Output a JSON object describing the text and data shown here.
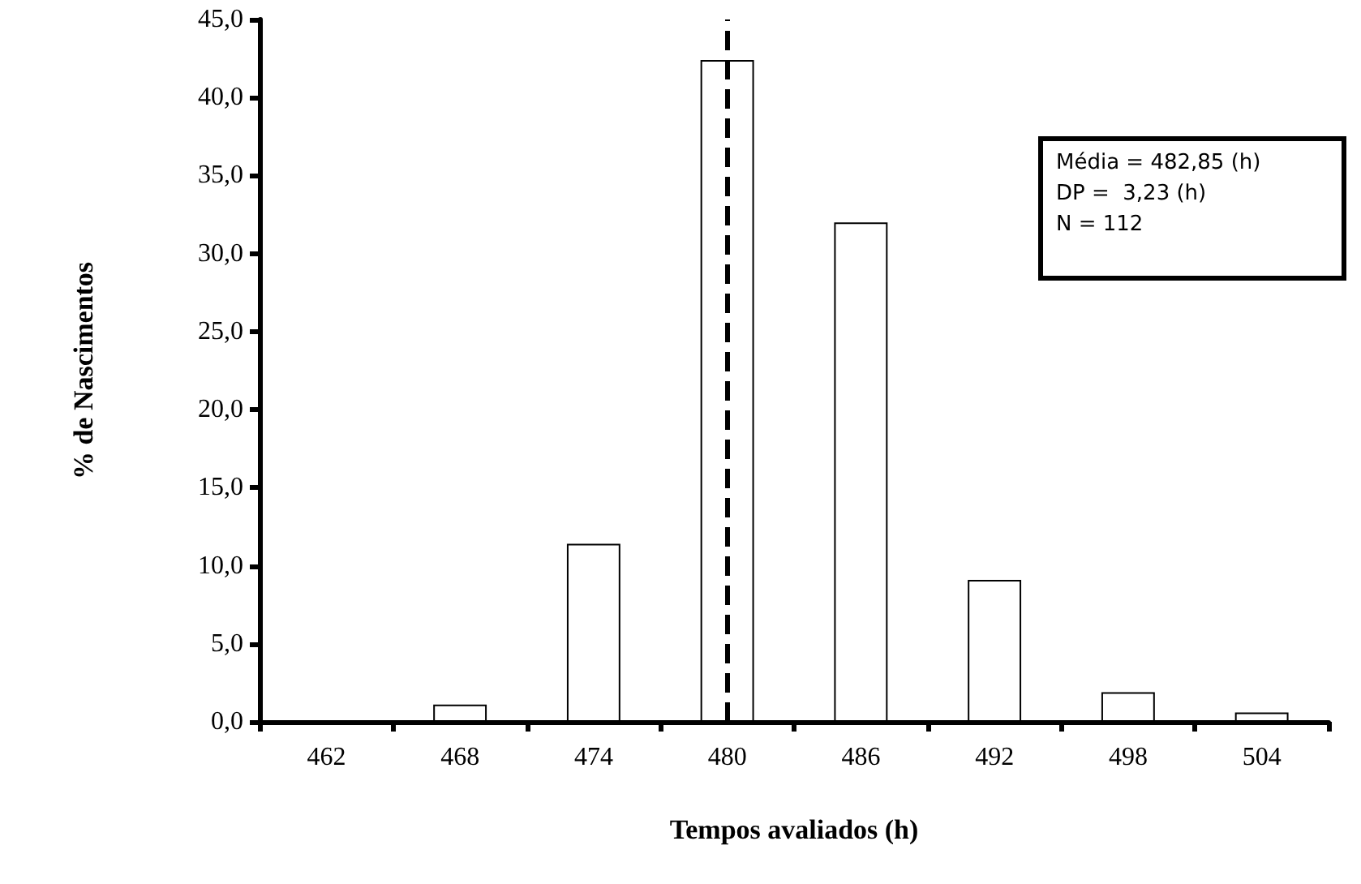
{
  "chart_data": {
    "type": "bar",
    "xlabel": "Tempos avaliados (h)",
    "ylabel": "% de Nascimentos",
    "categories": [
      "462",
      "468",
      "474",
      "480",
      "486",
      "492",
      "498",
      "504"
    ],
    "values": [
      0,
      1.1,
      11.4,
      42.4,
      32.0,
      9.1,
      1.9,
      0.6
    ],
    "color": "#ffffff",
    "ylim": [
      0,
      45
    ],
    "yticks": [
      {
        "value": 0,
        "label": "0,0"
      },
      {
        "value": 5,
        "label": "5,0"
      },
      {
        "value": 10,
        "label": "10,0"
      },
      {
        "value": 15,
        "label": "15,0"
      },
      {
        "value": 20,
        "label": "20,0"
      },
      {
        "value": 25,
        "label": "25,0"
      },
      {
        "value": 30,
        "label": "30,0"
      },
      {
        "value": 35,
        "label": "35,0"
      },
      {
        "value": 40,
        "label": "40,0"
      },
      {
        "value": 45,
        "label": "45,0"
      }
    ],
    "ref_lines": [
      {
        "axis": "x",
        "value": "480",
        "line_style": "dashed",
        "color": "#000000"
      }
    ],
    "annotations": [
      "Média = 482,85 (h)",
      "DP =  3,23 (h)",
      "N = 112"
    ],
    "grid": false
  }
}
